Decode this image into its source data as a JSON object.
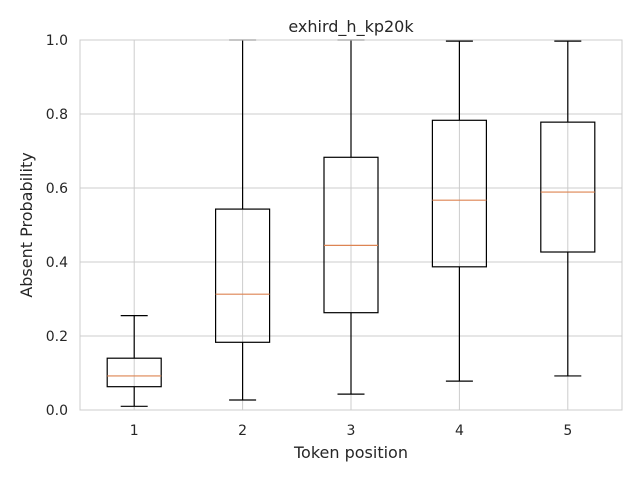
{
  "chart_data": {
    "type": "box",
    "title": "exhird_h_kp20k",
    "xlabel": "Token position",
    "ylabel": "Absent Probability",
    "ylim": [
      0.0,
      1.0
    ],
    "yticks": [
      "0.0",
      "0.2",
      "0.4",
      "0.6",
      "0.8",
      "1.0"
    ],
    "grid": true,
    "categories": [
      "1",
      "2",
      "3",
      "4",
      "5"
    ],
    "boxes": [
      {
        "category": "1",
        "whisker_low": 0.01,
        "q1": 0.063,
        "median": 0.092,
        "q3": 0.14,
        "whisker_high": 0.255
      },
      {
        "category": "2",
        "whisker_low": 0.027,
        "q1": 0.183,
        "median": 0.313,
        "q3": 0.543,
        "whisker_high": 1.0
      },
      {
        "category": "3",
        "whisker_low": 0.043,
        "q1": 0.263,
        "median": 0.445,
        "q3": 0.683,
        "whisker_high": 1.0
      },
      {
        "category": "4",
        "whisker_low": 0.078,
        "q1": 0.387,
        "median": 0.567,
        "q3": 0.783,
        "whisker_high": 0.997
      },
      {
        "category": "5",
        "whisker_low": 0.092,
        "q1": 0.427,
        "median": 0.589,
        "q3": 0.778,
        "whisker_high": 0.997
      }
    ],
    "colors": {
      "box": "#000000",
      "median": "#dd8452",
      "grid": "#cccccc",
      "spine": "#cccccc"
    }
  }
}
